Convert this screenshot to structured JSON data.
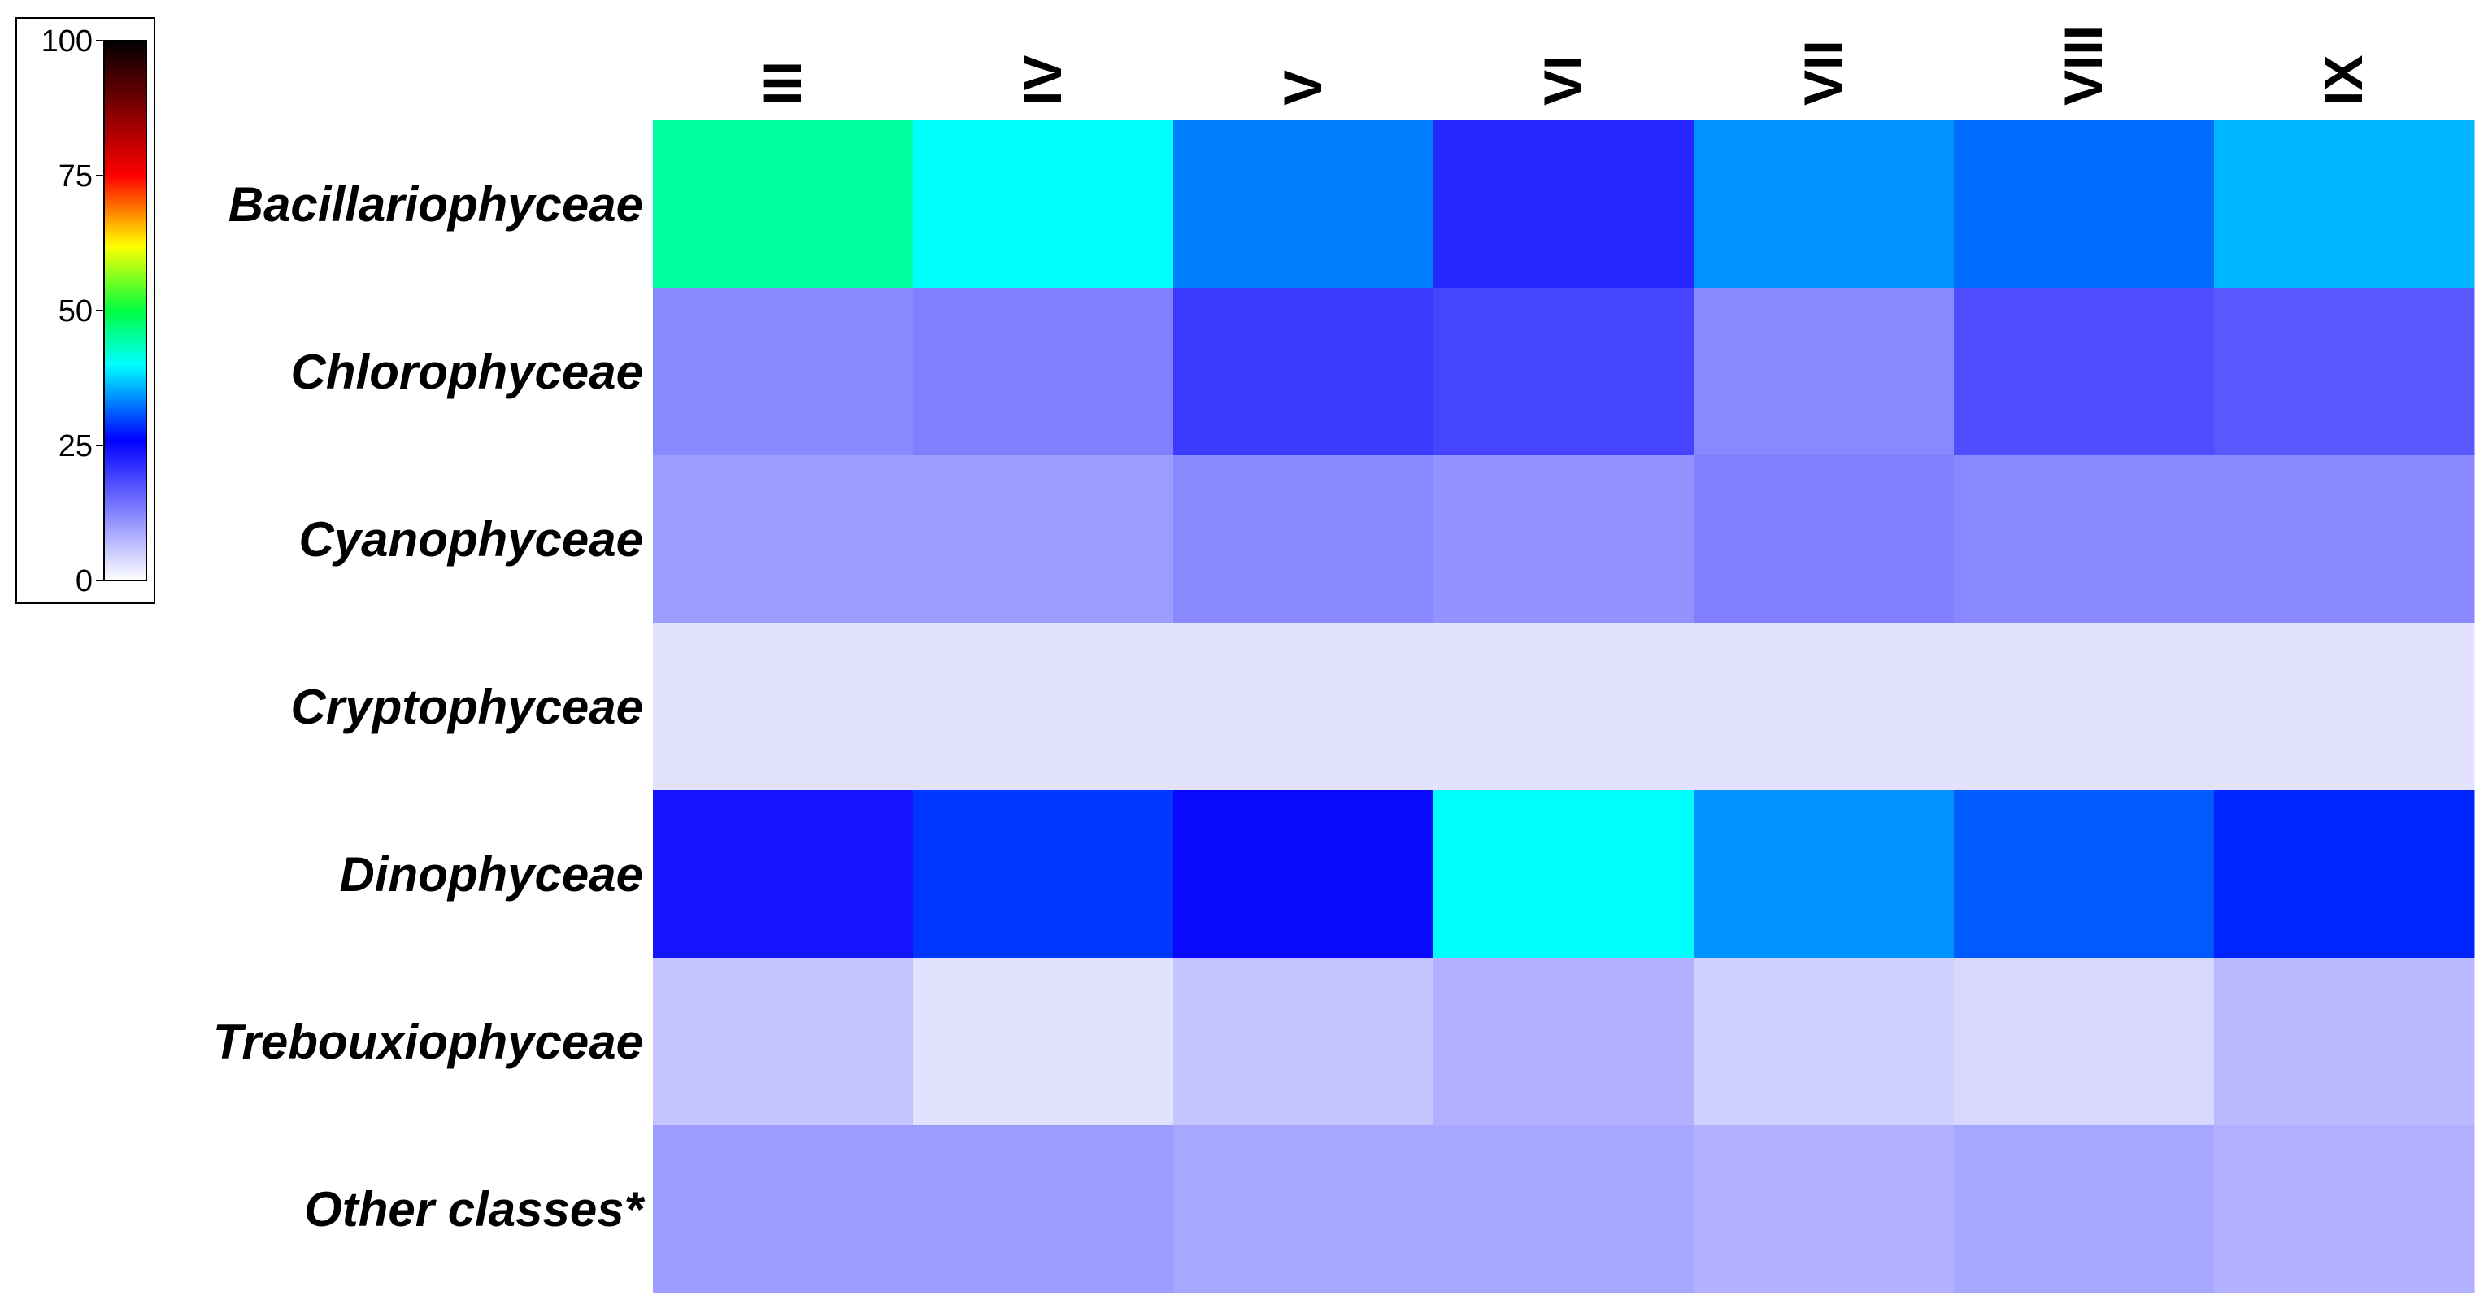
{
  "chart_data": {
    "type": "heatmap",
    "title": "",
    "xlabel": "",
    "ylabel": "",
    "columns": [
      "III",
      "IV",
      "V",
      "VI",
      "VII",
      "VIII",
      "IX"
    ],
    "rows": [
      "Bacillariophyceae",
      "Chlorophyceae",
      "Cyanophyceae",
      "Cryptophyceae",
      "Dinophyceae",
      "Trebouxiophyceae",
      "Other classes*"
    ],
    "values": [
      [
        45,
        40,
        33,
        22,
        34,
        32,
        36
      ],
      [
        12,
        13,
        20,
        19,
        12,
        18,
        17
      ],
      [
        10,
        10,
        12,
        11,
        13,
        12,
        12
      ],
      [
        3,
        3,
        3,
        3,
        3,
        3,
        3
      ],
      [
        24,
        29,
        25,
        40,
        34,
        31,
        28
      ],
      [
        6,
        3,
        6,
        8,
        5,
        4,
        7
      ],
      [
        10,
        10,
        9,
        9,
        8,
        9,
        8
      ]
    ],
    "colorbar": {
      "range": [
        0,
        100
      ],
      "ticks": [
        "0",
        "25",
        "50",
        "75",
        "100"
      ],
      "placement": "top-left",
      "colormap": [
        {
          "v": 0,
          "color": "#ffffff"
        },
        {
          "v": 26,
          "color": "#0000ff"
        },
        {
          "v": 40,
          "color": "#00ffff"
        },
        {
          "v": 50,
          "color": "#00ff40"
        },
        {
          "v": 62,
          "color": "#ffff00"
        },
        {
          "v": 75,
          "color": "#ff0000"
        },
        {
          "v": 100,
          "color": "#000000"
        }
      ]
    },
    "grid": false
  }
}
